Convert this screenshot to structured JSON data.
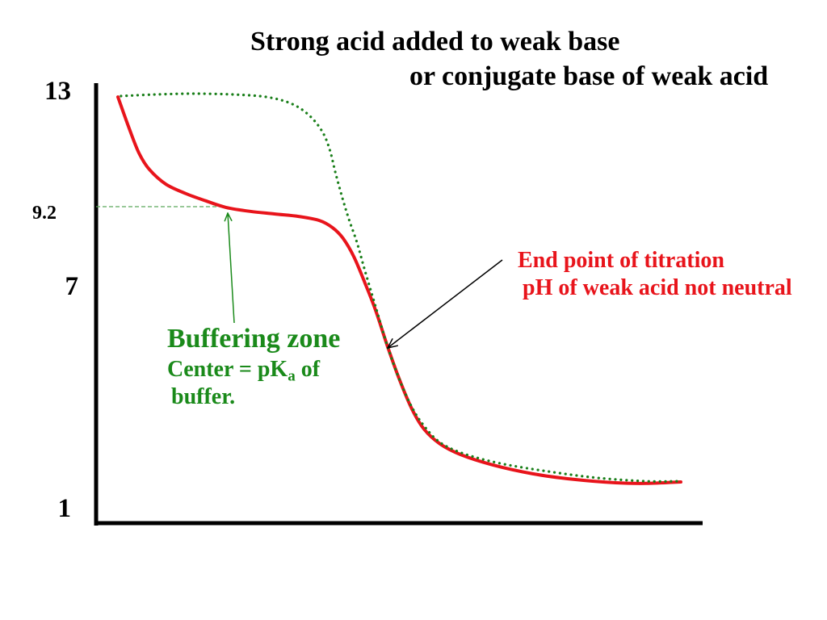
{
  "chart_data": {
    "type": "line",
    "title_lines": [
      "Strong acid added to weak base",
      "or conjugate base of weak acid"
    ],
    "xlabel": "",
    "ylabel": "",
    "xlim": [
      0,
      10
    ],
    "ylim": [
      1,
      13
    ],
    "grid": false,
    "axis_color": "#000000",
    "yticks": [
      {
        "value": 13,
        "label": "13"
      },
      {
        "value": 9.2,
        "label": "9.2"
      },
      {
        "value": 7,
        "label": "7"
      },
      {
        "value": 1,
        "label": "1"
      }
    ],
    "series": [
      {
        "color": "#e8141b",
        "dotted": false,
        "x": [
          0.36,
          0.55,
          0.71,
          0.88,
          1.15,
          1.48,
          1.81,
          2.14,
          2.54,
          2.94,
          3.34,
          3.68,
          3.9,
          4.07,
          4.25,
          4.43,
          4.61,
          4.81,
          5.01,
          5.21,
          5.41,
          5.67,
          6.01,
          6.54,
          7.2,
          7.87,
          8.54,
          9.07,
          9.64
        ],
        "y": [
          12.81,
          11.75,
          10.95,
          10.42,
          9.94,
          9.63,
          9.39,
          9.18,
          9.07,
          9.0,
          8.93,
          8.82,
          8.62,
          8.33,
          7.82,
          7.11,
          6.35,
          5.36,
          4.45,
          3.68,
          3.14,
          2.75,
          2.46,
          2.18,
          1.94,
          1.79,
          1.7,
          1.68,
          1.72
        ]
      },
      {
        "color": "#1a7f1a",
        "dotted": true,
        "x": [
          0.41,
          0.95,
          1.61,
          2.28,
          2.81,
          3.21,
          3.5,
          3.72,
          3.85,
          3.95,
          4.06,
          4.17,
          4.3,
          4.43,
          4.61,
          4.81,
          5.01,
          5.21,
          5.41,
          5.67,
          6.07,
          6.67,
          7.47,
          8.27,
          9.07,
          9.64
        ],
        "y": [
          12.84,
          12.89,
          12.92,
          12.89,
          12.81,
          12.6,
          12.23,
          11.7,
          11.09,
          10.29,
          9.49,
          8.84,
          8.22,
          7.45,
          6.45,
          5.36,
          4.45,
          3.73,
          3.23,
          2.79,
          2.48,
          2.22,
          2.0,
          1.83,
          1.74,
          1.74
        ]
      }
    ],
    "reference_lines": [
      {
        "y": 9.2,
        "x_start": 0,
        "x_end": 2.14,
        "dashed": true,
        "color": "#5aa85a"
      }
    ],
    "annotations": {
      "buffer": {
        "color": "#1a8a1a",
        "title": "Buffering zone",
        "center_prefix": "Center = pK",
        "center_sub": "a",
        "center_suffix": "of",
        "line3": "buffer."
      },
      "endpoint": {
        "color": "#e8141b",
        "line1": "End point of titration",
        "line2": "pH of weak acid not neutral"
      }
    }
  }
}
